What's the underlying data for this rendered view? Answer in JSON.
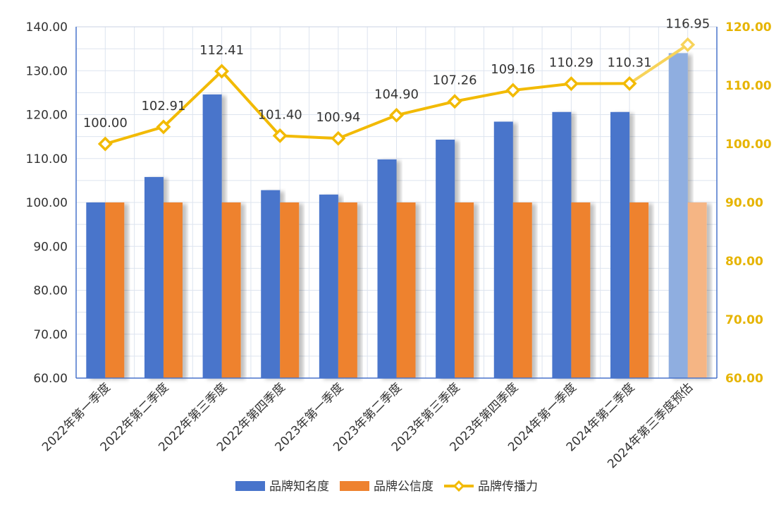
{
  "chart_data": {
    "type": "bar",
    "categories": [
      "2022年第一季度",
      "2022年第二季度",
      "2022年第三季度",
      "2022年第四季度",
      "2023年第一季度",
      "2023年第二季度",
      "2023年第三季度",
      "2023年第四季度",
      "2024年第一季度",
      "2024年第二季度",
      "2024年第三季度预估"
    ],
    "series": [
      {
        "name": "品牌知名度",
        "kind": "bar",
        "axis": "left",
        "color": "#4874cb",
        "forecast_color": "#8faee0",
        "values": [
          100.0,
          105.8,
          124.6,
          102.8,
          101.8,
          109.8,
          114.3,
          118.4,
          120.6,
          120.6,
          134.0
        ]
      },
      {
        "name": "品牌公信度",
        "kind": "bar",
        "axis": "left",
        "color": "#ee822f",
        "forecast_color": "#f5b584",
        "values": [
          100.0,
          100.0,
          100.0,
          100.0,
          100.0,
          100.0,
          100.0,
          100.0,
          100.0,
          100.0,
          100.0
        ]
      },
      {
        "name": "品牌传播力",
        "kind": "line",
        "axis": "right",
        "color": "#f2ba02",
        "values": [
          100.0,
          102.91,
          112.41,
          101.4,
          100.94,
          104.9,
          107.26,
          109.16,
          110.29,
          110.31,
          116.95
        ],
        "labels": [
          "100.00",
          "102.91",
          "112.41",
          "101.40",
          "100.94",
          "104.90",
          "107.26",
          "109.16",
          "110.29",
          "110.31",
          "116.95"
        ]
      }
    ],
    "forecast_index": 10,
    "left_axis": {
      "ylim": [
        60,
        140
      ],
      "ticks": [
        "60.00",
        "70.00",
        "80.00",
        "90.00",
        "100.00",
        "110.00",
        "120.00",
        "130.00",
        "140.00"
      ]
    },
    "right_axis": {
      "ylim": [
        60,
        120
      ],
      "ticks": [
        "60.00",
        "70.00",
        "80.00",
        "90.00",
        "100.00",
        "110.00",
        "120.00"
      ],
      "color": "#e6b400"
    },
    "grid": true,
    "legend_position": "bottom",
    "title": "",
    "xlabel": "",
    "ylabel": ""
  }
}
